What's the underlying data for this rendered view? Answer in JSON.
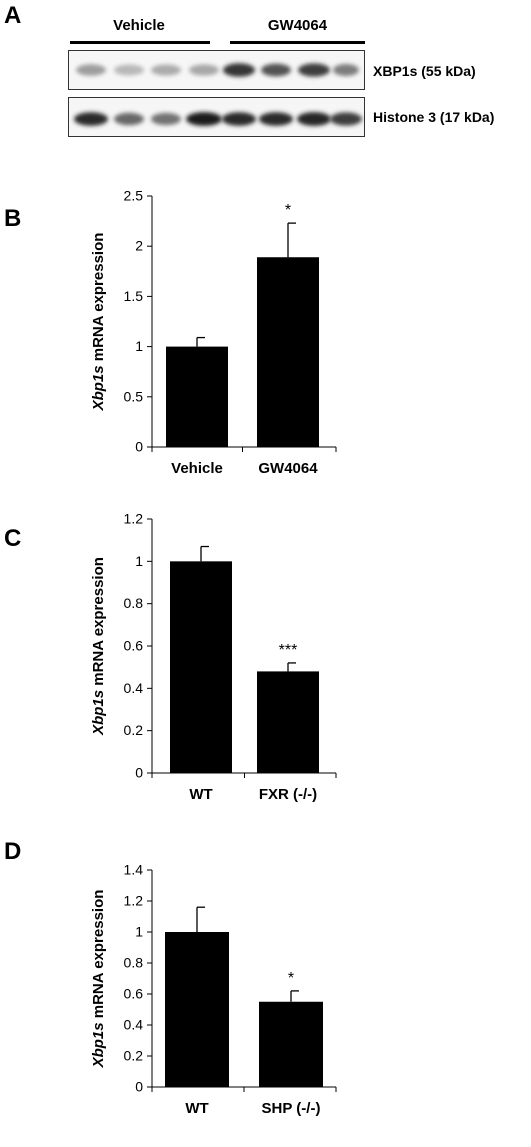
{
  "panels": {
    "a": "A",
    "b": "B",
    "c": "C",
    "d": "D"
  },
  "blot": {
    "groups": [
      "Vehicle",
      "GW4064"
    ],
    "rows": [
      {
        "label": "XBP1s (55 kDa)",
        "intensities": [
          0.35,
          0.22,
          0.28,
          0.3,
          0.85,
          0.7,
          0.8,
          0.5
        ]
      },
      {
        "label": "Histone 3 (17 kDa)",
        "intensities": [
          0.9,
          0.6,
          0.55,
          0.95,
          0.9,
          0.9,
          0.92,
          0.8
        ]
      }
    ]
  },
  "chart_data": [
    {
      "type": "bar",
      "ylabel": "Xbp1s mRNA expression",
      "categories": [
        "Vehicle",
        "GW4064"
      ],
      "values": [
        1.0,
        1.89
      ],
      "errors": [
        0.09,
        0.34
      ],
      "significance": [
        "",
        "*"
      ],
      "ylim": [
        0,
        2.5
      ],
      "yticks": [
        "0",
        "0.5",
        "1",
        "1.5",
        "2",
        "2.5"
      ],
      "ytick_values": [
        0,
        0.5,
        1,
        1.5,
        2,
        2.5
      ],
      "color": "#000000"
    },
    {
      "type": "bar",
      "ylabel": "Xbp1s mRNA expression",
      "categories": [
        "WT",
        "FXR (-/-)"
      ],
      "values": [
        1.0,
        0.48
      ],
      "errors": [
        0.07,
        0.04
      ],
      "significance": [
        "",
        "***"
      ],
      "ylim": [
        0,
        1.2
      ],
      "yticks": [
        "0",
        "0.2",
        "0.4",
        "0.6",
        "0.8",
        "1",
        "1.2"
      ],
      "ytick_values": [
        0,
        0.2,
        0.4,
        0.6,
        0.8,
        1.0,
        1.2
      ],
      "color": "#000000"
    },
    {
      "type": "bar",
      "ylabel": "Xbp1s mRNA expression",
      "categories": [
        "WT",
        "SHP (-/-)"
      ],
      "values": [
        1.0,
        0.55
      ],
      "errors": [
        0.16,
        0.07
      ],
      "significance": [
        "",
        "*"
      ],
      "ylim": [
        0,
        1.4
      ],
      "yticks": [
        "0",
        "0.2",
        "0.4",
        "0.6",
        "0.8",
        "1",
        "1.2",
        "1.4"
      ],
      "ytick_values": [
        0,
        0.2,
        0.4,
        0.6,
        0.8,
        1.0,
        1.2,
        1.4
      ],
      "color": "#000000"
    }
  ]
}
